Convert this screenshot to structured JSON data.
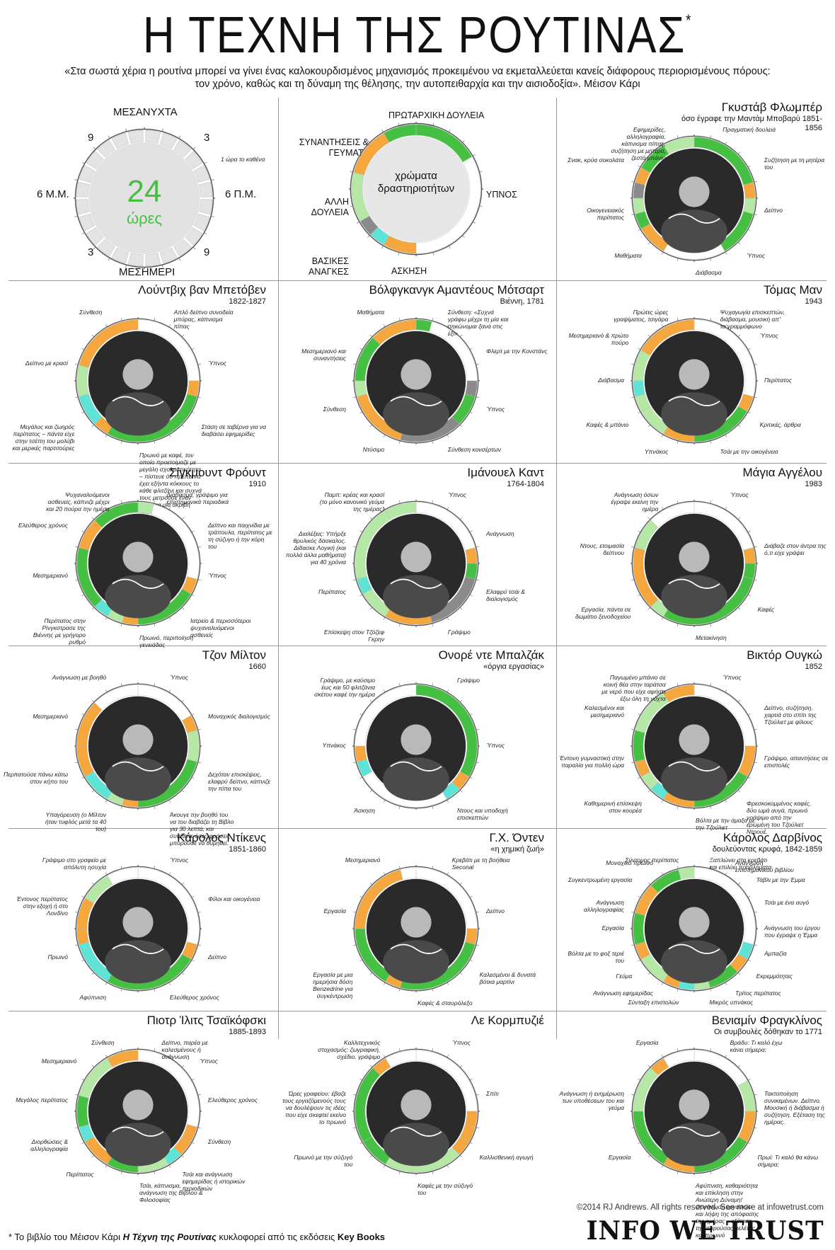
{
  "header": {
    "title": "Η ΤΕΧΝΗ ΤΗΣ ΡΟΥΤΙΝΑΣ",
    "title_mark": "*",
    "quote_line1": "«Στα σωστά χέρια η ρουτίνα μπορεί να γίνει ένας καλοκουρδισμένος μηχανισμός προκειμένου να εκμεταλλεύεται κανείς διάφορους περιορισμένους πόρους:",
    "quote_line2": "τον χρόνο, καθώς και τη δύναμη της θέλησης, την αυτοπειθαρχία και την αισιοδοξία». Μέισον Κάρι"
  },
  "colors": {
    "work": "#46c043",
    "other_work": "#b6e8a5",
    "meals": "#f5a63c",
    "sleep": "#ffffff",
    "exercise": "#5de4d6",
    "basic": "#8a8a8a",
    "ring_track": "#e3e3e3",
    "ring_border": "#555555"
  },
  "legend_clock": {
    "midnight": "ΜΕΣΑΝΥΧΤΑ",
    "noon": "ΜΕΣΗΜΕΡΙ",
    "left": "6 Μ.Μ.",
    "right": "6 Π.Μ.",
    "tl": "9",
    "tr": "3",
    "bl": "3",
    "br": "9",
    "center_num": "24",
    "center_word": "ώρες",
    "tick_note": "1 ώρα το καθένα"
  },
  "legend_colors": {
    "center": "χρώματα δραστηριοτήτων",
    "primary": "ΠΡΩΤΑΡΧΙΚΗ ΔΟΥΛΕΙΑ",
    "meetings": "ΣΥΝΑΝΤΗΣΕΙΣ & ΓΕΥΜΑΤΑ",
    "sleep": "ΥΠΝΟΣ",
    "other": "ΑΛΛΗ ΔΟΥΛΕΙΑ",
    "basic": "ΒΑΣΙΚΕΣ ΑΝΑΓΚΕΣ",
    "exercise": "ΑΣΚΗΣΗ"
  },
  "people": [
    {
      "name": "Γκυστάβ Φλωμπέρ",
      "sub": "όσο έγραφε την Μαντάμ Μποβαρύ 1851-1856",
      "labels": [
        "Πραγματική δουλειά",
        "Συζήτηση με τη μητέρα του",
        "Δείπνο",
        "Ύπνος",
        "Διάβασμα",
        "Μαθήματα",
        "Οικογενειακός περίπατος",
        "Σνακ, κρύα σοκολάτα",
        "Εφημερίδες, αλληλογραφία, κάπνισμα πίπας, συζήτηση με μητέρα, ζεστό μπάνιο"
      ],
      "segments": [
        [
          0,
          5,
          "work"
        ],
        [
          5,
          6,
          "meals"
        ],
        [
          6,
          7,
          "other_work"
        ],
        [
          7,
          10,
          "work"
        ],
        [
          10,
          14,
          "sleep"
        ],
        [
          14,
          16,
          "meals"
        ],
        [
          16,
          17,
          "work"
        ],
        [
          17,
          18,
          "other_work"
        ],
        [
          18,
          19,
          "basic"
        ],
        [
          19,
          20,
          "meals"
        ],
        [
          20,
          22,
          "work"
        ],
        [
          22,
          24,
          "other_work"
        ]
      ]
    },
    {
      "name": "Λούντβιχ βαν Μπετόβεν",
      "sub": "1822-1827",
      "labels": [
        "Απλό δείπνο συνοδεία μπύρας, κάπνισμα πίπας",
        "Ύπνος",
        "Στάση σε ταβέρνα για να διαβάσει εφημερίδες",
        "Πρωινό με καφέ, τον οποίο προετοίμαζε με μεγάλη σχολαστικότητα – πίστευε ότι πρέπει να έχει εξήντα κόκκους το κάθε φλιτζάνι και συχνά τους μετρούσε έναν έναν για μια ακριβή δόση",
        "Μεγάλος και ζωηρός περίπατος – πάντα είχε στην τσέπη του μολύβι και μερικές παρτιτούρες",
        "Δείπνο με κρασί",
        "Σύνθεση"
      ],
      "segments": [
        [
          0,
          6,
          "sleep"
        ],
        [
          6,
          7,
          "meals"
        ],
        [
          7,
          14,
          "work"
        ],
        [
          14,
          15,
          "meals"
        ],
        [
          15,
          17,
          "exercise"
        ],
        [
          17,
          19,
          "other_work"
        ],
        [
          19,
          21,
          "meals"
        ],
        [
          21,
          24,
          "meals"
        ]
      ]
    },
    {
      "name": "Βόλφγκανγκ Αμαντέους Μότσαρτ",
      "sub": "Βιέννη, 1781",
      "labels": [
        "Σύνθεση: «Συχνά γράφω μέχρι τη μία και σηκώνομαι ξανά στις έξι»",
        "Φλερτ με την Κονστάνς",
        "Ύπνος",
        "Σύνθεση κονσέρτων",
        "Ντύσιμο",
        "Σύνθεση",
        "Μεσημεριανό και συναντήσεις",
        "Μαθήματα"
      ],
      "segments": [
        [
          0,
          1,
          "work"
        ],
        [
          1,
          6,
          "sleep"
        ],
        [
          6,
          7,
          "basic"
        ],
        [
          7,
          9,
          "work"
        ],
        [
          9,
          13,
          "basic"
        ],
        [
          13,
          17,
          "meals"
        ],
        [
          17,
          18,
          "other_work"
        ],
        [
          18,
          21,
          "work"
        ],
        [
          21,
          23,
          "meals"
        ],
        [
          23,
          24,
          "meals"
        ]
      ]
    },
    {
      "name": "Τόμας Μαν",
      "sub": "1943",
      "labels": [
        "Ψυχαγωγία επισκεπτών, διάβασμα, μουσική απ' το γραμμόφωνο",
        "Ύπνος",
        "Περίπατος",
        "Κριτικές, άρθρα",
        "Τσάι με την οικογένεια",
        "Υπνάκος",
        "Καφές & μπάνιο",
        "Διάβασμα",
        "Μεσημεριανό & πρώτο πούρο",
        "Πρώτες ώρες γραψίματος, τσιγάρα"
      ],
      "segments": [
        [
          0,
          7,
          "sleep"
        ],
        [
          7,
          8,
          "meals"
        ],
        [
          8,
          12,
          "work"
        ],
        [
          12,
          14,
          "meals"
        ],
        [
          14,
          16,
          "other_work"
        ],
        [
          16,
          17,
          "other_work"
        ],
        [
          17,
          18,
          "exercise"
        ],
        [
          18,
          20,
          "other_work"
        ],
        [
          20,
          22,
          "meals"
        ],
        [
          22,
          24,
          "meals"
        ]
      ]
    },
    {
      "name": "Σίγκμουντ Φρόυντ",
      "sub": "1910",
      "labels": [
        "Διάβασμα, γράψιμο για επιστημονικά περιοδικά",
        "Δείπνο και παιχνίδια με τράπουλα, περίπατος με τη σύζυγο ή την κόρη του",
        "Ύπνος",
        "Ιατρείο & περισσότεροι ψυχαναλυόμενοι ασθενείς",
        "Πρωινό, περιποίηση γενειάδας",
        "Περίπατος στην Ρίνγκστρασε της Βιέννης με γρήγορο ρυθμό",
        "Μεσημεριανό",
        "Ελεύθερος χρόνος",
        "Ψυχαναλυόμενοι ασθενείς, κάπνιζε μέχρι και 20 πούρα την ημέρα"
      ],
      "segments": [
        [
          0,
          1,
          "other_work"
        ],
        [
          1,
          7,
          "sleep"
        ],
        [
          7,
          8,
          "meals"
        ],
        [
          8,
          12,
          "work"
        ],
        [
          12,
          13,
          "meals"
        ],
        [
          13,
          14,
          "other_work"
        ],
        [
          14,
          15,
          "exercise"
        ],
        [
          15,
          19,
          "work"
        ],
        [
          19,
          21,
          "meals"
        ],
        [
          21,
          24,
          "work"
        ]
      ]
    },
    {
      "name": "Ιμάνουελ Καντ",
      "sub": "1764-1804",
      "labels": [
        "Ύπνος",
        "Ανάγνωση",
        "Ελαφρύ τσάι & διαλογισμός",
        "Γράψιμο",
        "Επίσκεψη στον Τζόζεφ Γκρην",
        "Περίπατος",
        "Διαλέξεις: Υπήρξε θρυλικός δάσκαλος. Δίδασκε Λογική (και πολλά άλλα μαθήματα) για 40 χρόνια",
        "Παμπ: κρέας και κρασί (το μόνο κανονικό γεύμα της ημέρας)"
      ],
      "segments": [
        [
          0,
          5,
          "sleep"
        ],
        [
          5,
          6,
          "meals"
        ],
        [
          6,
          7,
          "work"
        ],
        [
          7,
          11,
          "basic"
        ],
        [
          11,
          14,
          "meals"
        ],
        [
          14,
          16,
          "other_work"
        ],
        [
          16,
          17,
          "exercise"
        ],
        [
          17,
          22,
          "other_work"
        ],
        [
          22,
          24,
          "other_work"
        ]
      ]
    },
    {
      "name": "Μάγια Αγγέλου",
      "sub": "1983",
      "labels": [
        "Ύπνος",
        "Διάβαζε στον άντρα της ό,τι είχε γράψει",
        "Καφές",
        "Μετακίνηση",
        "Εργασία, πάντα σε δωμάτιο ξενοδοχείου",
        "Ντους, ετοιμασία δείπνου",
        "Ανάγνωση όσων έγραψε εκείνη την ημέρα"
      ],
      "segments": [
        [
          0,
          5,
          "sleep"
        ],
        [
          5,
          6,
          "meals"
        ],
        [
          6,
          7,
          "work"
        ],
        [
          7,
          14,
          "work"
        ],
        [
          14,
          15,
          "other_work"
        ],
        [
          15,
          19,
          "meals"
        ],
        [
          19,
          21,
          "other_work"
        ],
        [
          21,
          24,
          "sleep"
        ]
      ]
    },
    {
      "name": "Τζον Μίλτον",
      "sub": "1660",
      "labels": [
        "Ύπνος",
        "Μοναχικός διαλογισμός",
        "Δεχόταν επισκέψεις, ελαφρύ δείπνο, κάπνιζε την πίπα του",
        "Άκουγε την βοηθό του να του διαβάζει τη Βίβλο για 30 λεπτά, και συνέθετε όσες φράσεις μπορούσε να θυμηθεί.",
        "Υπαγόρευση (ο Μίλτον ήταν τυφλός μετά τα 40 του)",
        "Περπατούσε πάνω κάτω στον κήπο του",
        "Μεσημεριανό",
        "Ανάγνωση με βοηθό"
      ],
      "segments": [
        [
          0,
          4,
          "sleep"
        ],
        [
          4,
          5,
          "meals"
        ],
        [
          5,
          7,
          "other_work"
        ],
        [
          7,
          12,
          "work"
        ],
        [
          12,
          13,
          "meals"
        ],
        [
          13,
          14,
          "other_work"
        ],
        [
          14,
          16,
          "exercise"
        ],
        [
          16,
          18,
          "meals"
        ],
        [
          18,
          21,
          "meals"
        ],
        [
          21,
          24,
          "sleep"
        ]
      ]
    },
    {
      "name": "Ονορέ ντε Μπαλζάκ",
      "sub": "«όργια εργασίας»",
      "labels": [
        "Γράψιμο",
        "Ύπνος",
        "Ντους και υποδοχή επισκεπτών",
        "Άσκηση",
        "Υπνάκος",
        "Γράψιμο, με καύσιμο έως και 50 φλιτζάνια σκέτου καφέ την ημέρα"
      ],
      "segments": [
        [
          0,
          8,
          "work"
        ],
        [
          8,
          9,
          "meals"
        ],
        [
          9,
          10,
          "exercise"
        ],
        [
          10,
          16,
          "sleep"
        ],
        [
          16,
          17,
          "exercise"
        ],
        [
          17,
          18,
          "meals"
        ],
        [
          18,
          24,
          "sleep"
        ]
      ]
    },
    {
      "name": "Βικτόρ Ουγκώ",
      "sub": "1852",
      "labels": [
        "Ύπνος",
        "Δείπνο, συζήτηση, χαρτιά στο σπίτι της Τζούλιετ με φίλους",
        "Γράψιμο, απαντήσεις σε επιστολές",
        "Φρεσκοκομμένος καφές, δύο ωμά αυγά, πρωινό γράψιμο από την ερωμένη του Τζούλιετ Ντρουέ.",
        "Βόλτα με την άμαξα με την Τζούλιετ",
        "Καθημερινή επίσκεψη στον κουρέα",
        "Έντονη γυμναστική στην παραλία για πολλή ώρα",
        "Καλεσμένοι και μεσημεριανό",
        "Παγωμένο μπάνιο σε κοινή θέα στην ταράτσα με νερό που είχε αφήσει έξω όλη τη νύχτα"
      ],
      "segments": [
        [
          0,
          6,
          "sleep"
        ],
        [
          6,
          8,
          "meals"
        ],
        [
          8,
          12,
          "work"
        ],
        [
          12,
          14,
          "meals"
        ],
        [
          14,
          15,
          "exercise"
        ],
        [
          15,
          16,
          "other_work"
        ],
        [
          16,
          17,
          "meals"
        ],
        [
          17,
          19,
          "work"
        ],
        [
          19,
          22,
          "other_work"
        ],
        [
          22,
          24,
          "meals"
        ]
      ]
    },
    {
      "name": "Κάρολος Ντίκενς",
      "sub": "1851-1860",
      "labels": [
        "Ύπνος",
        "Φίλοι και οικογένεια",
        "Δείπνο",
        "Ελεύθερος χρόνος",
        "Αφύπνιση",
        "Πρωινό",
        "Έντονος περίπατος στην εξοχή ή στο Λονδίνο",
        "Γράψιμο στο γραφείο με απόλυτη ησυχία"
      ],
      "segments": [
        [
          0,
          7,
          "sleep"
        ],
        [
          7,
          8,
          "meals"
        ],
        [
          8,
          14,
          "work"
        ],
        [
          14,
          17,
          "exercise"
        ],
        [
          17,
          18,
          "meals"
        ],
        [
          18,
          20,
          "meals"
        ],
        [
          20,
          22,
          "other_work"
        ],
        [
          22,
          24,
          "sleep"
        ]
      ]
    },
    {
      "name": "Γ.Χ. Όντεν",
      "sub": "«η χημική ζωή»",
      "labels": [
        "Κρεβάτι με τη βοήθεια Seconal",
        "Δείπνο",
        "Καλεσμένοι & δυνατά βότκα μαρτίνι",
        "Καφές & σταυρόλεξο",
        "Εργασία με μια ημερήσια δόση Benzedrine για συγκέντρωση",
        "Εργασία",
        "Μεσημεριανό"
      ],
      "segments": [
        [
          0,
          6,
          "sleep"
        ],
        [
          6,
          7,
          "meals"
        ],
        [
          7,
          13,
          "work"
        ],
        [
          13,
          14,
          "meals"
        ],
        [
          14,
          18,
          "work"
        ],
        [
          18,
          21,
          "meals"
        ],
        [
          21,
          23,
          "meals"
        ],
        [
          23,
          24,
          "sleep"
        ]
      ]
    },
    {
      "name": "Κάρολος Δαρβίνος",
      "sub": "δουλεύοντας κρυφά, 1842-1859",
      "labels": [
        "Ξαπλώνει στο κρεβάτι και επιλύει προβλήματα",
        "Ανάγνωση επιστημονικού βιβλίου",
        "Τάβλι με την Έμμα",
        "Τσάι με ένα αυγό",
        "Ανάγνωση του έργου που έγραψε η Έμμα",
        "Αμπαζία",
        "Εκρεμμότητες",
        "Τρίτος περίπατος",
        "Μικρός υπνάκος",
        "Σύνταξη επιστολών",
        "Ανάγνωση εφημερίδας",
        "Γεύμα",
        "Βόλτα με το φοξ τεριέ του",
        "Εργασία",
        "Ανάγνωση αλληλογραφίας",
        "Συγκεντρωμένη εργασία",
        "Μοναχικό πρωινό",
        "Σύντομος περίπατος"
      ],
      "segments": [
        [
          0,
          7,
          "sleep"
        ],
        [
          7,
          8,
          "exercise"
        ],
        [
          8,
          9,
          "meals"
        ],
        [
          9,
          11,
          "work"
        ],
        [
          11,
          12,
          "other_work"
        ],
        [
          12,
          13,
          "exercise"
        ],
        [
          13,
          14,
          "meals"
        ],
        [
          14,
          16,
          "other_work"
        ],
        [
          16,
          17,
          "meals"
        ],
        [
          17,
          19,
          "work"
        ],
        [
          19,
          20,
          "meals"
        ],
        [
          20,
          21,
          "meals"
        ],
        [
          21,
          23,
          "work"
        ],
        [
          23,
          24,
          "other_work"
        ]
      ]
    },
    {
      "name": "Πιοτρ Ίλιτς Τσαϊκόφσκι",
      "sub": "1885-1893",
      "labels": [
        "Δείπνο, παρέα με καλεσμένους ή ανάγνωση",
        "Ύπνος",
        "Ελεύθερος χρόνος",
        "Σύνθεση",
        "Τσάι και ανάγνωση εφημερίδας ή ιστορικών περιοδικών",
        "Τσάι, κάπνισμα, ανάγνωση της Βίβλου & Φιλοσοφίας",
        "Περίπατος",
        "Διορθώσεις & αλληλογραφία",
        "Μεγάλος περίπατος",
        "Μεσημεριανό",
        "Σύνθεση"
      ],
      "segments": [
        [
          0,
          7,
          "sleep"
        ],
        [
          7,
          8,
          "meals"
        ],
        [
          8,
          9,
          "meals"
        ],
        [
          9,
          10,
          "exercise"
        ],
        [
          10,
          12,
          "other_work"
        ],
        [
          12,
          14,
          "work"
        ],
        [
          14,
          16,
          "meals"
        ],
        [
          16,
          17,
          "exercise"
        ],
        [
          17,
          19,
          "work"
        ],
        [
          19,
          22,
          "other_work"
        ],
        [
          22,
          24,
          "meals"
        ]
      ]
    },
    {
      "name": "Λε Κορμπυζιέ",
      "sub": "",
      "labels": [
        "Ύπνος",
        "Σπίτι",
        "Καλλισθενική αγωγή",
        "Καφές με την σύζυγό του",
        "Πρωινό με την σύζυγό του",
        "Ώρες γραφείου: έβαζε τους εργαζόμενούς τους να δουλέψουν τις ιδέες που είχε σκεφτεί εκείνο το πρωινό",
        "Καλλιτεχνικός στοχασμός: ζωγραφική, σχέδιο, γράψιμο"
      ],
      "segments": [
        [
          0,
          6,
          "sleep"
        ],
        [
          6,
          7,
          "meals"
        ],
        [
          7,
          8,
          "meals"
        ],
        [
          8,
          9,
          "meals"
        ],
        [
          9,
          14,
          "other_work"
        ],
        [
          14,
          16,
          "work"
        ],
        [
          16,
          21,
          "work"
        ],
        [
          21,
          22,
          "meals"
        ],
        [
          22,
          24,
          "sleep"
        ]
      ]
    },
    {
      "name": "Βενιαμίν Φραγκλίνος",
      "sub": "Οι συμβουλές δόθηκαν το 1771",
      "labels": [
        "Βράδυ: Τι καλό έχω κάνει σήμερα;",
        "Τακτοποίηση συνικεμένων. Δείπνο. Μουσική ή διάβασμα ή συζήτηση. Εξέταση της ημέρας.",
        "Πρωί: Τι καλό θα κάνω σήμερα;",
        "Αφύπνιση, καθαριότητα και επίκληση στην Ανώτερη Δύναμη! Οργάνωση εργασιών και λήψη της απόφασης της ημέρας – εξέταση της παρούσας μελέτης και πρωινό",
        "Εργασία",
        "Ανάγνωση ή ενημέρωση των υποθέσεων του και γεύμα",
        "Εργασία"
      ],
      "segments": [
        [
          0,
          4,
          "sleep"
        ],
        [
          4,
          6,
          "other_work"
        ],
        [
          6,
          8,
          "meals"
        ],
        [
          8,
          12,
          "work"
        ],
        [
          12,
          14,
          "meals"
        ],
        [
          14,
          18,
          "work"
        ],
        [
          18,
          21,
          "other_work"
        ],
        [
          21,
          22,
          "meals"
        ],
        [
          22,
          24,
          "sleep"
        ]
      ]
    }
  ],
  "footer": {
    "note_prefix": "* Το βιβλίο του Μέισον Κάρι",
    "note_book": "Η Τέχνη της Ρουτίνας",
    "note_middle": "κυκλοφορεί από τις εκδόσεις",
    "note_publisher": "Key Books",
    "copyright": "©2014 RJ Andrews. All rights reserved. See more at infowetrust.com",
    "brand": "INFO WE TRUST"
  }
}
